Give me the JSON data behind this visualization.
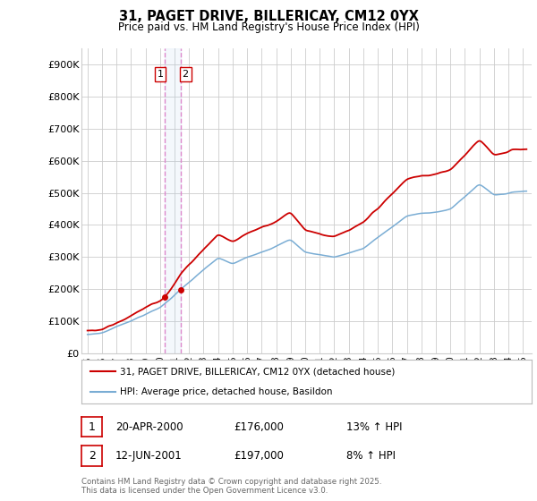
{
  "title": "31, PAGET DRIVE, BILLERICAY, CM12 0YX",
  "subtitle": "Price paid vs. HM Land Registry's House Price Index (HPI)",
  "ylabel_ticks": [
    "£0",
    "£100K",
    "£200K",
    "£300K",
    "£400K",
    "£500K",
    "£600K",
    "£700K",
    "£800K",
    "£900K"
  ],
  "ytick_values": [
    0,
    100000,
    200000,
    300000,
    400000,
    500000,
    600000,
    700000,
    800000,
    900000
  ],
  "ylim": [
    0,
    950000
  ],
  "xlim_start": 1994.6,
  "xlim_end": 2025.6,
  "legend_label_red": "31, PAGET DRIVE, BILLERICAY, CM12 0YX (detached house)",
  "legend_label_blue": "HPI: Average price, detached house, Basildon",
  "transaction1_date": "20-APR-2000",
  "transaction1_price": "£176,000",
  "transaction1_hpi": "13% ↑ HPI",
  "transaction2_date": "12-JUN-2001",
  "transaction2_price": "£197,000",
  "transaction2_hpi": "8% ↑ HPI",
  "footer": "Contains HM Land Registry data © Crown copyright and database right 2025.\nThis data is licensed under the Open Government Licence v3.0.",
  "red_color": "#cc0000",
  "blue_color": "#7aadd4",
  "vline_color": "#dd88cc",
  "grid_color": "#cccccc",
  "transaction1_x": 2000.3,
  "transaction2_x": 2001.45,
  "background_color": "#ffffff"
}
